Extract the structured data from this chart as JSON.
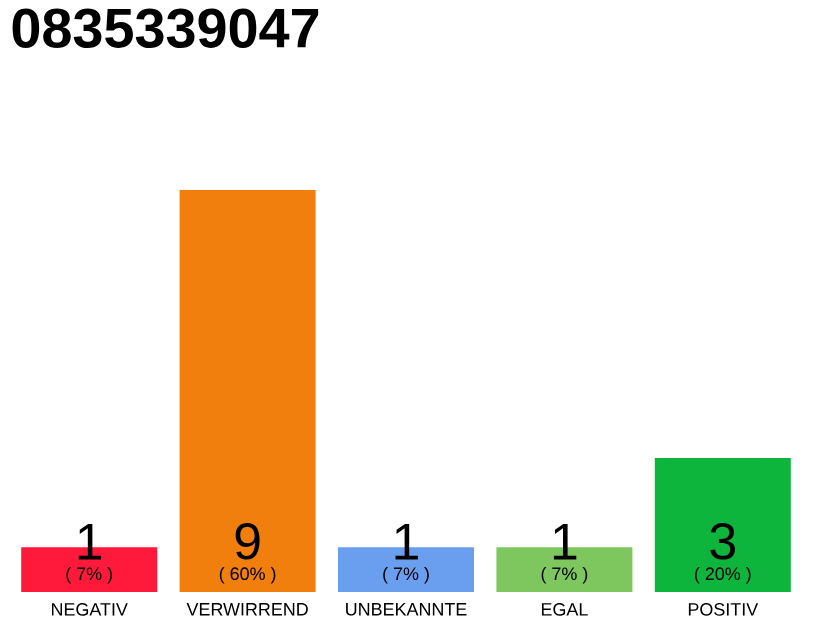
{
  "chart_data": {
    "type": "bar",
    "title": "0835339047",
    "categories": [
      "NEGATIV",
      "VERWIRREND",
      "UNBEKANNTE",
      "EGAL",
      "POSITIV"
    ],
    "values": [
      1,
      9,
      1,
      1,
      3
    ],
    "colors": [
      "#ff1a3c",
      "#f07f0d",
      "#6a9ff0",
      "#7dc75e",
      "#0db53c"
    ],
    "value_labels": [
      "1",
      "9",
      "1",
      "1",
      "3"
    ],
    "annotations": [
      {
        "text": "( 7% )",
        "x": "NEGATIV",
        "y": 0
      },
      {
        "text": "( 60% )",
        "x": "VERWIRREND",
        "y": 0
      },
      {
        "text": "( 7% )",
        "x": "UNBEKANNTE",
        "y": 0
      },
      {
        "text": "( 7% )",
        "x": "EGAL",
        "y": 0
      },
      {
        "text": "( 20% )",
        "x": "POSITIV",
        "y": 0
      }
    ]
  }
}
